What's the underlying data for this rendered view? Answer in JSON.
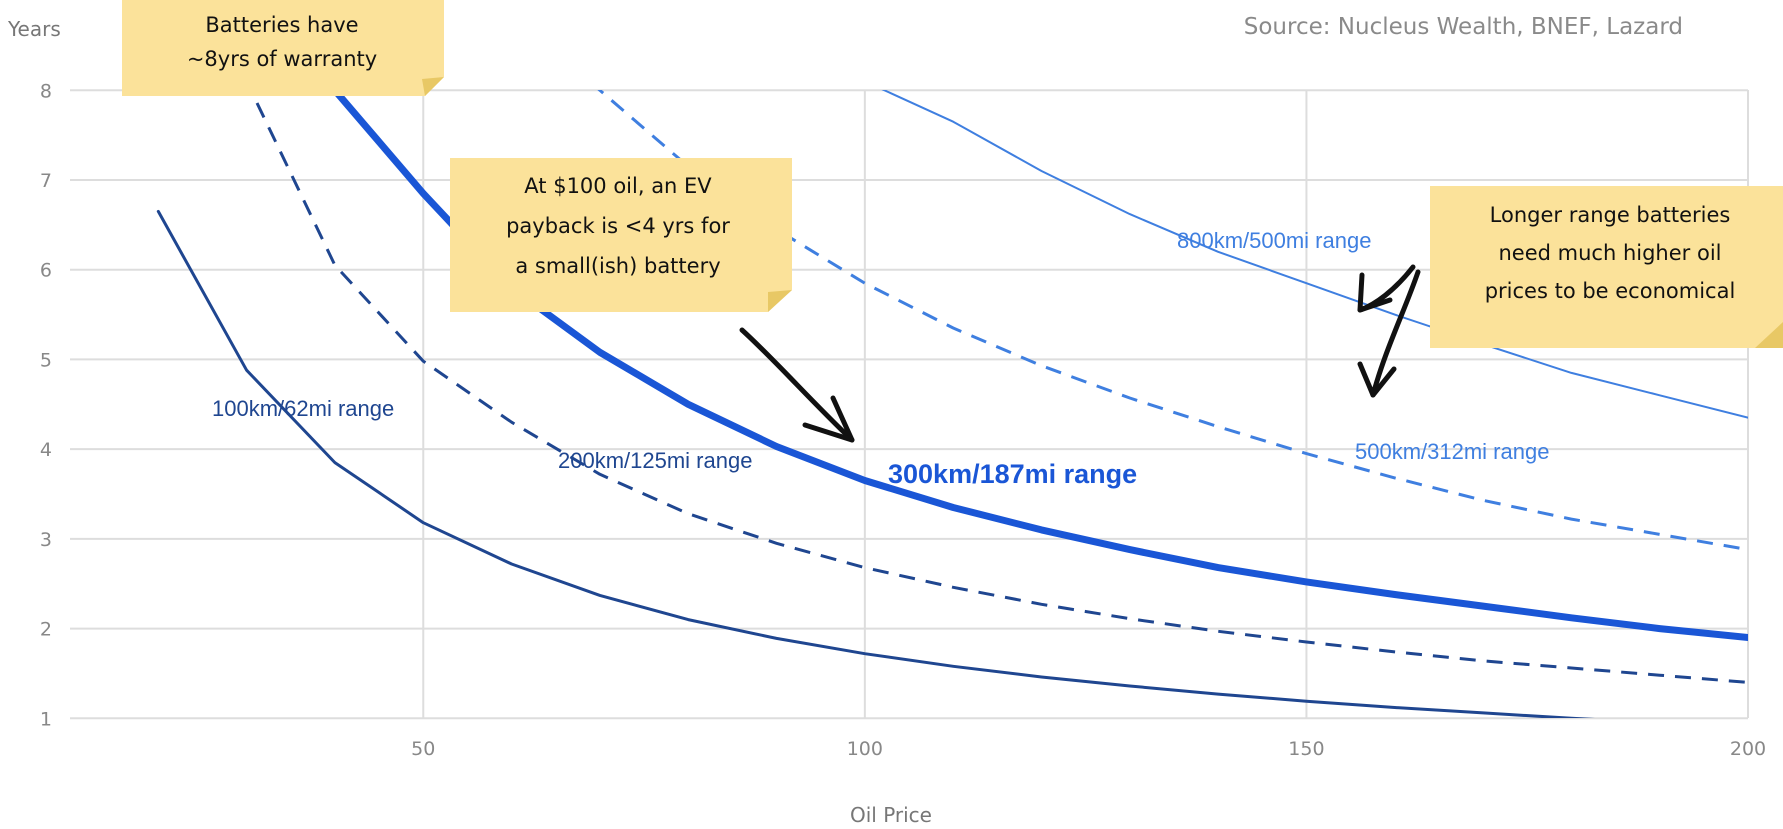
{
  "source": "Source: Nucleus Wealth, BNEF, Lazard",
  "colors": {
    "dark": "#1f4690",
    "mid": "#1a56d6",
    "light": "#3f7fe0",
    "note_bg": "#fbe29a",
    "note_edge": "#e8c865",
    "grid": "#dddddd"
  },
  "chart_data": {
    "type": "line",
    "xlabel": "Oil Price",
    "ylabel": "Years",
    "xlim": [
      10,
      200
    ],
    "ylim": [
      1,
      8
    ],
    "x_ticks": [
      50,
      100,
      150,
      200
    ],
    "y_ticks": [
      1,
      2,
      3,
      4,
      5,
      6,
      7,
      8
    ],
    "grid": true,
    "series": [
      {
        "name": "100km/62mi range",
        "color": "#1f4690",
        "style": "solid",
        "width": 3,
        "x": [
          20,
          30,
          40,
          50,
          60,
          70,
          80,
          90,
          100,
          110,
          120,
          130,
          140,
          150,
          160,
          170,
          180,
          190,
          200
        ],
        "y": [
          6.65,
          4.88,
          3.85,
          3.18,
          2.72,
          2.37,
          2.1,
          1.89,
          1.72,
          1.58,
          1.46,
          1.36,
          1.27,
          1.19,
          1.12,
          1.06,
          1.0,
          0.95,
          0.91
        ]
      },
      {
        "name": "200km/125mi range",
        "color": "#1f4690",
        "style": "dashed",
        "width": 3,
        "x": [
          20,
          30,
          40,
          50,
          60,
          70,
          80,
          90,
          100,
          110,
          120,
          130,
          140,
          150,
          160,
          170,
          180,
          190,
          200
        ],
        "y": [
          10.0,
          8.1,
          6.05,
          4.98,
          4.3,
          3.72,
          3.28,
          2.95,
          2.68,
          2.46,
          2.27,
          2.11,
          1.97,
          1.85,
          1.74,
          1.64,
          1.56,
          1.48,
          1.4
        ]
      },
      {
        "name": "300km/187mi range",
        "color": "#1a56d6",
        "style": "solid",
        "width": 7,
        "x": [
          40,
          50,
          60,
          70,
          80,
          90,
          100,
          110,
          120,
          130,
          140,
          150,
          160,
          170,
          180,
          190,
          200
        ],
        "y": [
          8.0,
          6.85,
          5.8,
          5.08,
          4.5,
          4.03,
          3.65,
          3.35,
          3.1,
          2.88,
          2.68,
          2.52,
          2.38,
          2.25,
          2.12,
          2.0,
          1.9
        ]
      },
      {
        "name": "500km/312mi range",
        "color": "#3f7fe0",
        "style": "dashed",
        "width": 3,
        "x": [
          60,
          70,
          80,
          90,
          100,
          110,
          120,
          130,
          140,
          150,
          160,
          170,
          180,
          190,
          200
        ],
        "y": [
          8.9,
          8.0,
          7.15,
          6.45,
          5.85,
          5.35,
          4.93,
          4.57,
          4.25,
          3.95,
          3.68,
          3.43,
          3.22,
          3.05,
          2.88
        ]
      },
      {
        "name": "800km/500mi range",
        "color": "#3f7fe0",
        "style": "solid",
        "width": 2,
        "x": [
          100,
          110,
          120,
          130,
          140,
          150,
          160,
          170,
          180,
          190,
          200
        ],
        "y": [
          8.1,
          7.65,
          7.1,
          6.62,
          6.2,
          5.85,
          5.5,
          5.17,
          4.85,
          4.6,
          4.35
        ]
      }
    ],
    "annotations": [
      {
        "text": [
          "Batteries have",
          "~8yrs of warranty"
        ]
      },
      {
        "text": [
          "At $100 oil, an EV",
          "payback is <4 yrs for",
          "a small(ish) battery"
        ]
      },
      {
        "text": [
          "Longer range batteries",
          "need much higher oil",
          "prices to be economical"
        ]
      }
    ]
  }
}
